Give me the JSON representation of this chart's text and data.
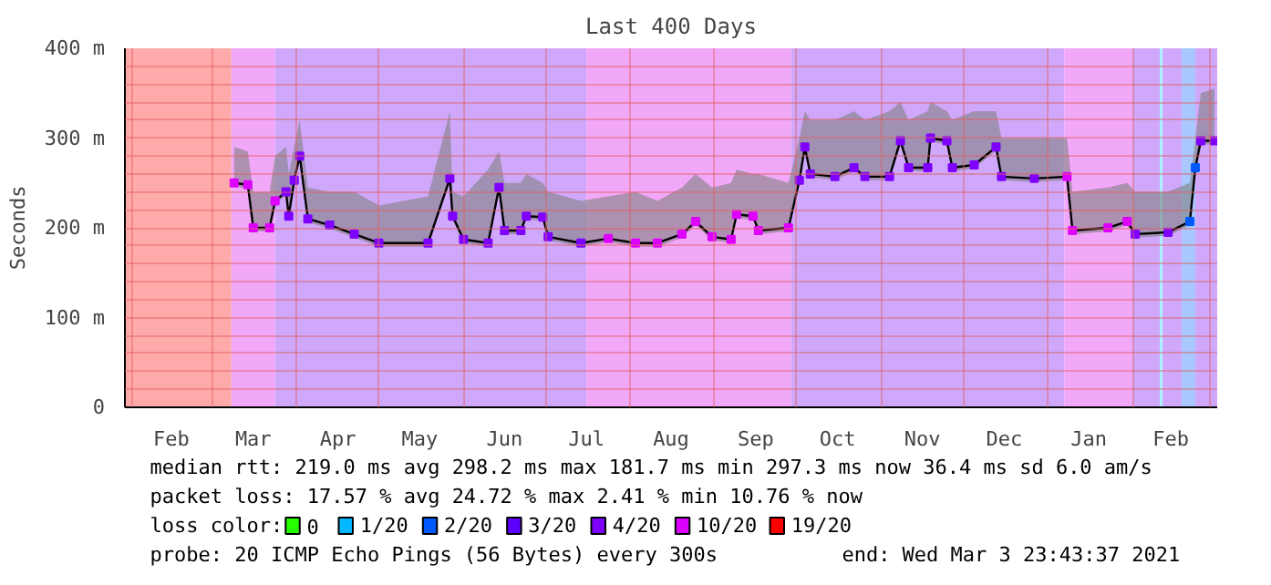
{
  "chart_data": {
    "type": "line",
    "title": "Last 400 Days",
    "ylabel": "Seconds",
    "xlim": [
      "2020-01-29",
      "2021-03-04"
    ],
    "xticks": [
      {
        "value": "2020-02-01",
        "label": null
      },
      {
        "value": "2020-02-15",
        "label": "Feb"
      },
      {
        "value": "2020-03-01",
        "label": null
      },
      {
        "value": "2020-03-16",
        "label": "Mar"
      },
      {
        "value": "2020-04-01",
        "label": null
      },
      {
        "value": "2020-04-16",
        "label": "Apr"
      },
      {
        "value": "2020-05-01",
        "label": null
      },
      {
        "value": "2020-05-16",
        "label": "May"
      },
      {
        "value": "2020-06-01",
        "label": null
      },
      {
        "value": "2020-06-16",
        "label": "Jun"
      },
      {
        "value": "2020-07-01",
        "label": null
      },
      {
        "value": "2020-07-16",
        "label": "Jul"
      },
      {
        "value": "2020-08-01",
        "label": null
      },
      {
        "value": "2020-08-16",
        "label": "Aug"
      },
      {
        "value": "2020-09-01",
        "label": null
      },
      {
        "value": "2020-09-16",
        "label": "Sep"
      },
      {
        "value": "2020-10-01",
        "label": null
      },
      {
        "value": "2020-10-16",
        "label": "Oct"
      },
      {
        "value": "2020-11-01",
        "label": null
      },
      {
        "value": "2020-11-16",
        "label": "Nov"
      },
      {
        "value": "2020-12-01",
        "label": null
      },
      {
        "value": "2020-12-16",
        "label": "Dec"
      },
      {
        "value": "2021-01-01",
        "label": null
      },
      {
        "value": "2021-01-16",
        "label": "Jan"
      },
      {
        "value": "2021-02-01",
        "label": null
      },
      {
        "value": "2021-02-15",
        "label": "Feb"
      },
      {
        "value": "2021-03-01",
        "label": null
      }
    ],
    "ylim": [
      0,
      400
    ],
    "yticks": [
      0,
      {
        "value": 20,
        "label": null
      },
      {
        "value": 40,
        "label": null
      },
      {
        "value": 60,
        "label": null
      },
      {
        "value": 80,
        "label": null
      },
      {
        "value": 100,
        "label": "100 m"
      },
      {
        "value": 120,
        "label": null
      },
      {
        "value": 140,
        "label": null
      },
      {
        "value": 160,
        "label": null
      },
      {
        "value": 180,
        "label": null
      },
      {
        "value": 200,
        "label": "200 m"
      },
      {
        "value": 220,
        "label": null
      },
      {
        "value": 240,
        "label": null
      },
      {
        "value": 260,
        "label": null
      },
      {
        "value": 280,
        "label": null
      },
      {
        "value": 300,
        "label": "300 m"
      },
      {
        "value": 320,
        "label": null
      },
      {
        "value": 340,
        "label": null
      },
      {
        "value": 360,
        "label": null
      },
      {
        "value": 380,
        "label": null
      },
      {
        "value": 400,
        "label": "400 m"
      }
    ],
    "grid": true,
    "legend": "bottom",
    "marker": "square",
    "line_style": "solid",
    "bands": [
      {
        "axis": "x",
        "from": "2020-01-29",
        "to": "2020-03-08",
        "color": "#ffaaaa"
      },
      {
        "axis": "x",
        "from": "2020-03-08",
        "to": "2020-03-24",
        "color": "#f2a8f8"
      },
      {
        "axis": "x",
        "from": "2020-03-24",
        "to": "2020-07-16",
        "color": "#d0a8fb"
      },
      {
        "axis": "x",
        "from": "2020-07-16",
        "to": "2020-09-29",
        "color": "#f2a8f8"
      },
      {
        "axis": "x",
        "from": "2020-09-29",
        "to": "2021-01-07",
        "color": "#d0a8fb"
      },
      {
        "axis": "x",
        "from": "2021-01-07",
        "to": "2021-02-01",
        "color": "#f2a8f8"
      },
      {
        "axis": "x",
        "from": "2021-02-01",
        "to": "2021-02-11",
        "color": "#d0a8fb"
      },
      {
        "axis": "x",
        "from": "2021-02-11",
        "to": "2021-02-12",
        "color": "#a8f0ff"
      },
      {
        "axis": "x",
        "from": "2021-02-12",
        "to": "2021-02-19",
        "color": "#d0a8fb"
      },
      {
        "axis": "x",
        "from": "2021-02-19",
        "to": "2021-02-24",
        "color": "#a8c8ff"
      },
      {
        "axis": "x",
        "from": "2021-02-24",
        "to": "2021-03-04",
        "color": "#d0a8fb"
      }
    ],
    "series": [
      {
        "color": "#000000",
        "marker": "none",
        "x": [
          "2020-03-09",
          "2020-03-14",
          "2020-03-16",
          "2020-03-22",
          "2020-03-24",
          "2020-03-28",
          "2020-03-29",
          "2020-03-31",
          "2020-04-02",
          "2020-04-05",
          "2020-04-13",
          "2020-04-22",
          "2020-05-01",
          "2020-05-19",
          "2020-05-27",
          "2020-05-28",
          "2020-06-01",
          "2020-06-10",
          "2020-06-14",
          "2020-06-16",
          "2020-06-22",
          "2020-06-24",
          "2020-06-30",
          "2020-07-02",
          "2020-07-14",
          "2020-07-24",
          "2020-08-03",
          "2020-08-11",
          "2020-08-20",
          "2020-08-25",
          "2020-08-31",
          "2020-09-07",
          "2020-09-09",
          "2020-09-15",
          "2020-09-17",
          "2020-09-28",
          "2020-10-02",
          "2020-10-04",
          "2020-10-06",
          "2020-10-15",
          "2020-10-22",
          "2020-10-26",
          "2020-11-04",
          "2020-11-08",
          "2020-11-11",
          "2020-11-18",
          "2020-11-19",
          "2020-11-25",
          "2020-11-27",
          "2020-12-05",
          "2020-12-13",
          "2020-12-15",
          "2020-12-27",
          "2021-01-08",
          "2021-01-10",
          "2021-01-23",
          "2021-01-30",
          "2021-02-02",
          "2021-02-14",
          "2021-02-22",
          "2021-02-24",
          "2021-02-26",
          "2021-03-03"
        ],
        "values": [
          250,
          248,
          200,
          200,
          230,
          240,
          213,
          253,
          280,
          210,
          203,
          193,
          183,
          183,
          255,
          213,
          187,
          183,
          245,
          197,
          197,
          213,
          212,
          190,
          183,
          188,
          183,
          183,
          193,
          207,
          190,
          187,
          215,
          213,
          197,
          200,
          253,
          290,
          260,
          257,
          267,
          257,
          257,
          297,
          267,
          267,
          300,
          297,
          267,
          270,
          290,
          257,
          255,
          257,
          197,
          200,
          207,
          193,
          195,
          207,
          267,
          297,
          297
        ],
        "lower": [
          246,
          244,
          196,
          196,
          226,
          236,
          209,
          249,
          276,
          206,
          199,
          189,
          179,
          179,
          251,
          209,
          183,
          179,
          241,
          193,
          193,
          209,
          208,
          186,
          179,
          184,
          179,
          179,
          189,
          203,
          186,
          183,
          211,
          209,
          193,
          196,
          249,
          286,
          256,
          253,
          263,
          253,
          253,
          293,
          263,
          263,
          296,
          293,
          263,
          266,
          286,
          253,
          251,
          253,
          193,
          196,
          203,
          189,
          191,
          203,
          263,
          293,
          293
        ],
        "upper": [
          290,
          285,
          240,
          240,
          280,
          290,
          260,
          290,
          320,
          245,
          240,
          240,
          225,
          235,
          330,
          240,
          235,
          265,
          285,
          250,
          250,
          260,
          250,
          240,
          230,
          235,
          240,
          230,
          245,
          260,
          245,
          250,
          265,
          260,
          260,
          250,
          300,
          330,
          320,
          320,
          330,
          320,
          330,
          340,
          320,
          330,
          340,
          330,
          320,
          330,
          330,
          300,
          300,
          300,
          240,
          245,
          250,
          240,
          240,
          250,
          300,
          350,
          355
        ]
      },
      {
        "type": "scatter",
        "name": "0",
        "color": "#26ff00"
      },
      {
        "type": "scatter",
        "name": "1/20",
        "color": "#00b8ff"
      },
      {
        "type": "scatter",
        "name": "2/20",
        "color": "#0059ff",
        "x": [
          "2021-02-22",
          "2021-02-24"
        ],
        "values": [
          207,
          267
        ]
      },
      {
        "type": "scatter",
        "name": "3/20",
        "color": "#5e00ff"
      },
      {
        "type": "scatter",
        "name": "4/20",
        "color": "#7e00ff",
        "x": [
          "2020-03-28",
          "2020-03-29",
          "2020-03-31",
          "2020-04-02",
          "2020-04-05",
          "2020-04-13",
          "2020-04-22",
          "2020-05-01",
          "2020-05-19",
          "2020-05-27",
          "2020-05-28",
          "2020-06-01",
          "2020-06-10",
          "2020-06-14",
          "2020-06-16",
          "2020-06-22",
          "2020-06-24",
          "2020-06-30",
          "2020-07-02",
          "2020-07-14",
          "2020-10-02",
          "2020-10-04",
          "2020-10-06",
          "2020-10-15",
          "2020-10-22",
          "2020-10-26",
          "2020-11-04",
          "2020-11-08",
          "2020-11-11",
          "2020-11-18",
          "2020-11-19",
          "2020-11-25",
          "2020-11-27",
          "2020-12-05",
          "2020-12-13",
          "2020-12-15",
          "2020-12-27",
          "2021-02-02",
          "2021-02-14",
          "2021-02-26",
          "2021-03-03"
        ],
        "values": [
          240,
          213,
          253,
          280,
          210,
          203,
          193,
          183,
          183,
          255,
          213,
          187,
          183,
          245,
          197,
          197,
          213,
          212,
          190,
          183,
          253,
          290,
          260,
          257,
          267,
          257,
          257,
          297,
          267,
          267,
          300,
          297,
          267,
          270,
          290,
          257,
          255,
          193,
          195,
          297,
          297
        ]
      },
      {
        "type": "scatter",
        "name": "10/20",
        "color": "#dd00ff",
        "x": [
          "2020-03-09",
          "2020-03-14",
          "2020-03-16",
          "2020-03-22",
          "2020-03-24",
          "2020-07-24",
          "2020-08-03",
          "2020-08-11",
          "2020-08-20",
          "2020-08-25",
          "2020-08-31",
          "2020-09-07",
          "2020-09-09",
          "2020-09-15",
          "2020-09-17",
          "2020-09-28",
          "2021-01-08",
          "2021-01-10",
          "2021-01-23",
          "2021-01-30"
        ],
        "values": [
          250,
          248,
          200,
          200,
          230,
          188,
          183,
          183,
          193,
          207,
          190,
          187,
          215,
          213,
          197,
          200,
          257,
          197,
          200,
          207
        ]
      },
      {
        "type": "scatter",
        "name": "19/20",
        "color": "#ff0000"
      }
    ],
    "annotations": [
      "median rtt:  219.0 ms avg  298.2 ms max  181.7 ms min  297.3 ms now  36.4 ms sd  6.0   am/s",
      "packet loss: 17.57 % avg  24.72 % max  2.41 % min  10.76 % now",
      "loss color:",
      "probe:        20 ICMP Echo Pings (56 Bytes) every 300s",
      "end: Wed Mar  3 23:43:37 2021"
    ]
  }
}
